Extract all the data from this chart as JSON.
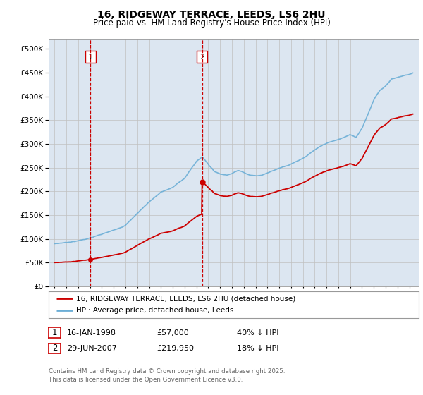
{
  "title": "16, RIDGEWAY TERRACE, LEEDS, LS6 2HU",
  "subtitle": "Price paid vs. HM Land Registry's House Price Index (HPI)",
  "hpi_label": "HPI: Average price, detached house, Leeds",
  "property_label": "16, RIDGEWAY TERRACE, LEEDS, LS6 2HU (detached house)",
  "purchase1_date": "16-JAN-1998",
  "purchase1_price": 57000,
  "purchase1_note": "40% ↓ HPI",
  "purchase2_date": "29-JUN-2007",
  "purchase2_price": 219950,
  "purchase2_note": "18% ↓ HPI",
  "purchase1_year": 1998.04,
  "purchase2_year": 2007.49,
  "hpi_color": "#6baed6",
  "property_color": "#cc0000",
  "vline_color": "#cc0000",
  "bg_color": "#dce6f1",
  "plot_bg": "#ffffff",
  "grid_color": "#c0c0c0",
  "legend_box_color": "#cc0000",
  "footer_text": "Contains HM Land Registry data © Crown copyright and database right 2025.\nThis data is licensed under the Open Government Licence v3.0.",
  "ylim": [
    0,
    520000
  ],
  "yticks": [
    0,
    50000,
    100000,
    150000,
    200000,
    250000,
    300000,
    350000,
    400000,
    450000,
    500000
  ],
  "xlim_start": 1994.5,
  "xlim_end": 2025.8
}
